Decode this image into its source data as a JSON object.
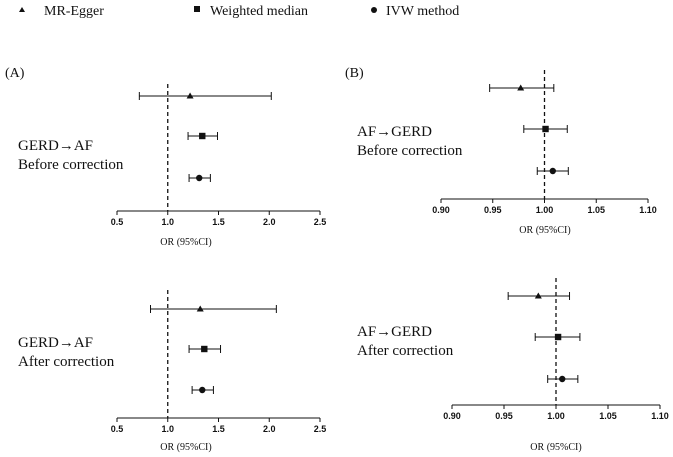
{
  "legend": {
    "items": [
      {
        "label": "MR-Egger",
        "marker": "triangle"
      },
      {
        "label": "Weighted median",
        "marker": "square"
      },
      {
        "label": "IVW method",
        "marker": "circle"
      }
    ]
  },
  "chart_data": [
    {
      "type": "forest",
      "panel_label": "(A)",
      "title_lines": [
        "GERD→AF",
        "Before correction"
      ],
      "xlabel": "OR (95%CI)",
      "xlim": [
        0.5,
        2.5
      ],
      "ticks": [
        "0.5",
        "1.0",
        "1.5",
        "2.0",
        "2.5"
      ],
      "tick_values": [
        0.5,
        1.0,
        1.5,
        2.0,
        2.5
      ],
      "reference": 1.0,
      "estimates": [
        {
          "method": "MR-Egger",
          "marker": "triangle",
          "or": 1.22,
          "lower": 0.72,
          "upper": 2.02
        },
        {
          "method": "Weighted median",
          "marker": "square",
          "or": 1.34,
          "lower": 1.2,
          "upper": 1.49
        },
        {
          "method": "IVW method",
          "marker": "circle",
          "or": 1.31,
          "lower": 1.21,
          "upper": 1.42
        }
      ]
    },
    {
      "type": "forest",
      "panel_label": "(B)",
      "title_lines": [
        "AF→GERD",
        "Before correction"
      ],
      "xlabel": "OR (95%CI)",
      "xlim": [
        0.9,
        1.1
      ],
      "ticks": [
        "0.90",
        "0.95",
        "1.00",
        "1.05",
        "1.10"
      ],
      "tick_values": [
        0.9,
        0.95,
        1.0,
        1.05,
        1.1
      ],
      "reference": 1.0,
      "estimates": [
        {
          "method": "MR-Egger",
          "marker": "triangle",
          "or": 0.977,
          "lower": 0.947,
          "upper": 1.009
        },
        {
          "method": "Weighted median",
          "marker": "square",
          "or": 1.001,
          "lower": 0.98,
          "upper": 1.022
        },
        {
          "method": "IVW method",
          "marker": "circle",
          "or": 1.008,
          "lower": 0.993,
          "upper": 1.023
        }
      ]
    },
    {
      "type": "forest",
      "panel_label": "",
      "title_lines": [
        "GERD→AF",
        "After correction"
      ],
      "xlabel": "OR (95%CI)",
      "xlim": [
        0.5,
        2.5
      ],
      "ticks": [
        "0.5",
        "1.0",
        "1.5",
        "2.0",
        "2.5"
      ],
      "tick_values": [
        0.5,
        1.0,
        1.5,
        2.0,
        2.5
      ],
      "reference": 1.0,
      "estimates": [
        {
          "method": "MR-Egger",
          "marker": "triangle",
          "or": 1.32,
          "lower": 0.83,
          "upper": 2.07
        },
        {
          "method": "Weighted median",
          "marker": "square",
          "or": 1.36,
          "lower": 1.21,
          "upper": 1.52
        },
        {
          "method": "IVW method",
          "marker": "circle",
          "or": 1.34,
          "lower": 1.24,
          "upper": 1.45
        }
      ]
    },
    {
      "type": "forest",
      "panel_label": "",
      "title_lines": [
        "AF→GERD",
        "After correction"
      ],
      "xlabel": "OR (95%CI)",
      "xlim": [
        0.9,
        1.1
      ],
      "ticks": [
        "0.90",
        "0.95",
        "1.00",
        "1.05",
        "1.10"
      ],
      "tick_values": [
        0.9,
        0.95,
        1.0,
        1.05,
        1.1
      ],
      "reference": 1.0,
      "estimates": [
        {
          "method": "MR-Egger",
          "marker": "triangle",
          "or": 0.983,
          "lower": 0.954,
          "upper": 1.013
        },
        {
          "method": "Weighted median",
          "marker": "square",
          "or": 1.002,
          "lower": 0.98,
          "upper": 1.023
        },
        {
          "method": "IVW method",
          "marker": "circle",
          "or": 1.006,
          "lower": 0.992,
          "upper": 1.021
        }
      ]
    }
  ]
}
